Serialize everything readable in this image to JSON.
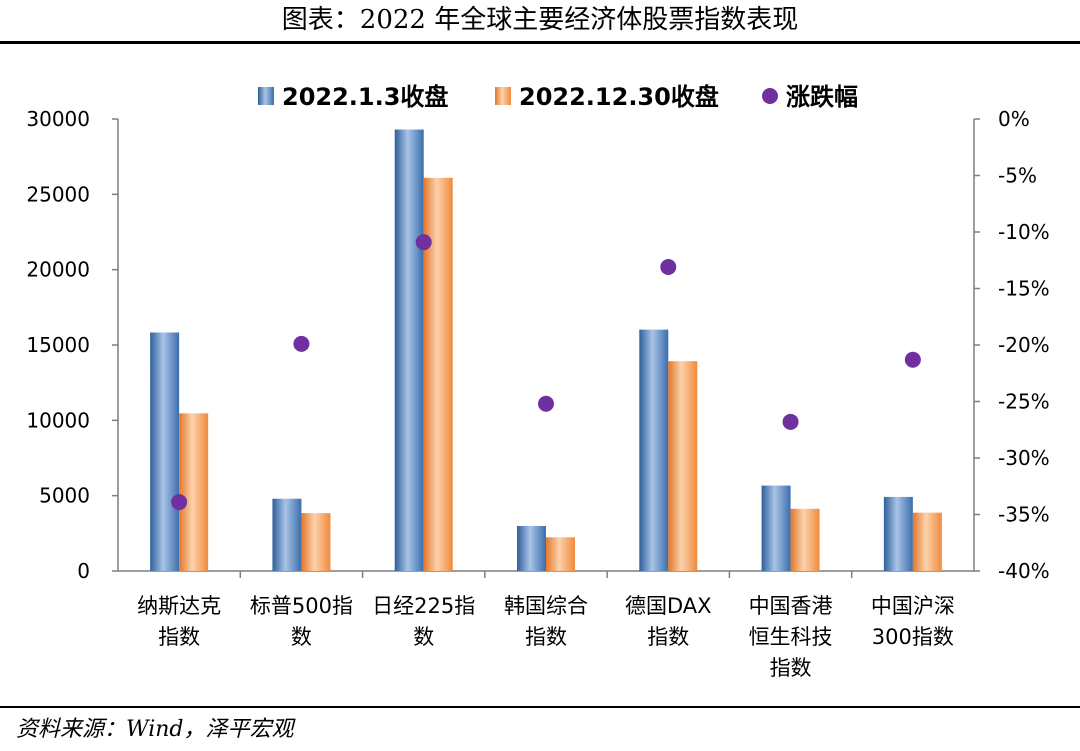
{
  "header": {
    "title": "图表：2022 年全球主要经济体股票指数表现"
  },
  "footer": {
    "source": "资料来源：Wind，泽平宏观"
  },
  "colors": {
    "bar1": "#4f81bd",
    "bar2": "#f79646",
    "dot": "#7030a0"
  },
  "chart_data": {
    "type": "bar",
    "categories": [
      [
        "纳斯达克",
        "指数"
      ],
      [
        "标普500指",
        "数"
      ],
      [
        "日经225指",
        "数"
      ],
      [
        "韩国综合",
        "指数"
      ],
      [
        "德国DAX",
        "指数"
      ],
      [
        "中国香港",
        "恒生科技",
        "指数"
      ],
      [
        "中国沪深",
        "300指数"
      ]
    ],
    "series": [
      {
        "name": "2022.1.3收盘",
        "type": "bar",
        "axis": "left",
        "values": [
          15830,
          4797,
          29300,
          2989,
          16020,
          5670,
          4917
        ]
      },
      {
        "name": "2022.12.30收盘",
        "type": "bar",
        "axis": "left",
        "values": [
          10466,
          3840,
          26095,
          2236,
          13924,
          4128,
          3872
        ]
      },
      {
        "name": "涨跌幅",
        "type": "scatter",
        "axis": "right",
        "values": [
          -33.9,
          -19.9,
          -10.9,
          -25.2,
          -13.1,
          -26.8,
          -21.3
        ]
      }
    ],
    "left_axis": {
      "min": 0,
      "max": 30000,
      "ticks": [
        "0",
        "5000",
        "10000",
        "15000",
        "20000",
        "25000",
        "30000"
      ]
    },
    "right_axis": {
      "min": -40,
      "max": 0,
      "ticks": [
        "0%",
        "-5%",
        "-10%",
        "-15%",
        "-20%",
        "-25%",
        "-30%",
        "-35%",
        "-40%"
      ]
    },
    "legend": "top"
  }
}
